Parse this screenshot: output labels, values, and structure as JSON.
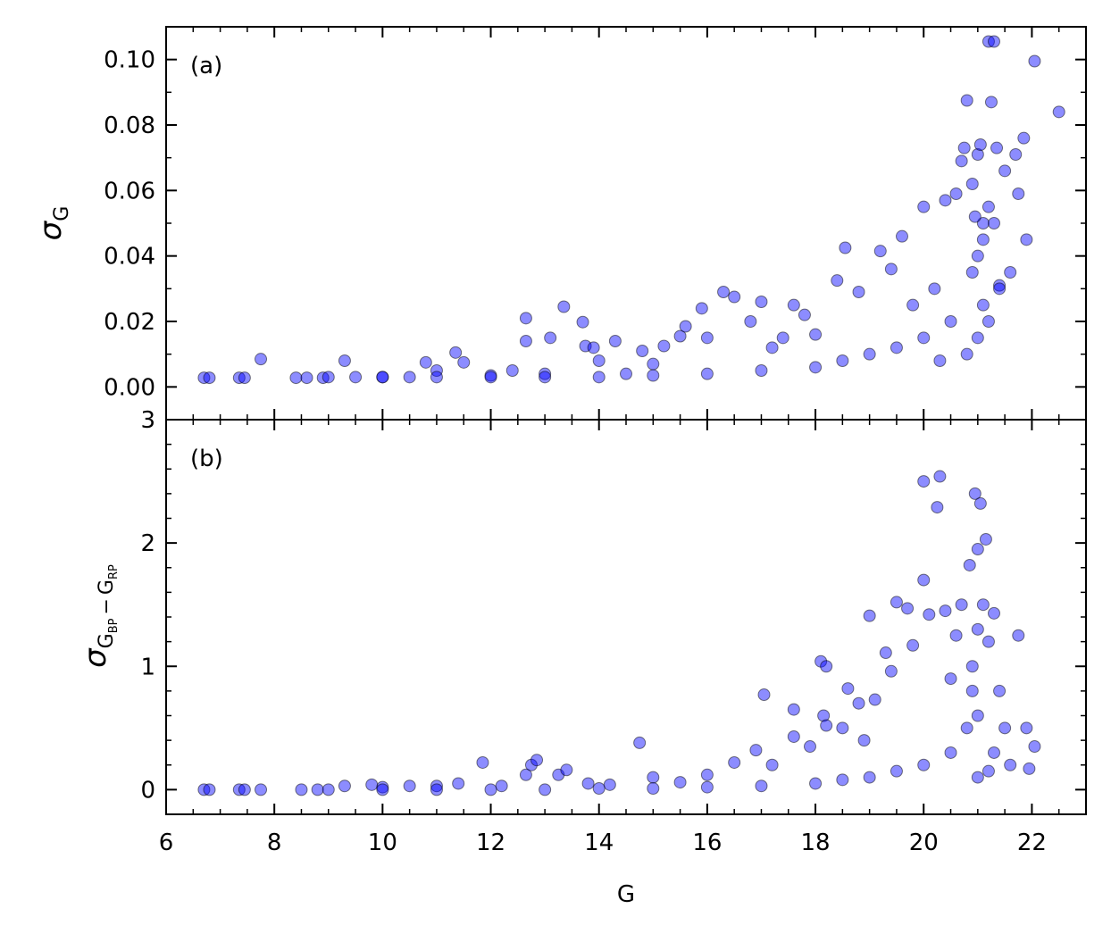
{
  "chart_data": [
    {
      "type": "scatter",
      "annotation": "(a)",
      "ylabel": [
        "σ",
        "G"
      ],
      "xlim": [
        6,
        23
      ],
      "xticks": [
        6,
        8,
        10,
        12,
        14,
        16,
        18,
        20,
        22
      ],
      "show_xticklabels": false,
      "ylim": [
        -0.01,
        0.11
      ],
      "yticks": [
        {
          "value": 0,
          "label": "0.00"
        },
        {
          "value": 0.02,
          "label": "0.02"
        },
        {
          "value": 0.04,
          "label": "0.04"
        },
        {
          "value": 0.06,
          "label": "0.06"
        },
        {
          "value": 0.08,
          "label": "0.08"
        },
        {
          "value": 0.1,
          "label": "0.10"
        }
      ],
      "series": [
        {
          "color": "#0000ff",
          "x": [
            6.7,
            6.8,
            7.35,
            7.45,
            7.75,
            8.4,
            8.6,
            8.9,
            9.3,
            9.5,
            10,
            10.5,
            10.8,
            11,
            11.35,
            11.5,
            12,
            12.4,
            12.65,
            12.65,
            13,
            13.1,
            13.35,
            13.7,
            13.75,
            13.9,
            14,
            14.3,
            14.5,
            14.8,
            15,
            15.2,
            15.5,
            15.6,
            15.9,
            16,
            16.3,
            16.5,
            16.8,
            17,
            17.2,
            17.4,
            17.6,
            17.8,
            18,
            18.4,
            18.55,
            18.8,
            19.2,
            19.4,
            19.6,
            19.8,
            20,
            20.2,
            20.4,
            20.6,
            20.7,
            20.75,
            20.8,
            20.9,
            21,
            21.05,
            21.1,
            21.2,
            21.25,
            21.3,
            21.35,
            21.5,
            21.7,
            21.75,
            21.85,
            22.05,
            22.5,
            21.9,
            21.6,
            21.4,
            21,
            20.9,
            21.1,
            20.5,
            20,
            19.5,
            19,
            18.5,
            18,
            17,
            16,
            15,
            14,
            13,
            12,
            11,
            10,
            9,
            20.8,
            21,
            21.2,
            21.4,
            20.3,
            21.1,
            20.95,
            21.2,
            21.3
          ],
          "values": [
            0.0028,
            0.0028,
            0.0028,
            0.0028,
            0.0085,
            0.0028,
            0.0028,
            0.0028,
            0.008,
            0.003,
            0.003,
            0.003,
            0.0075,
            0.005,
            0.0105,
            0.0075,
            0.0035,
            0.005,
            0.021,
            0.014,
            0.004,
            0.015,
            0.0245,
            0.0198,
            0.0125,
            0.012,
            0.008,
            0.014,
            0.004,
            0.011,
            0.007,
            0.0125,
            0.0155,
            0.0185,
            0.024,
            0.015,
            0.029,
            0.0275,
            0.02,
            0.026,
            0.012,
            0.015,
            0.025,
            0.022,
            0.016,
            0.0325,
            0.0425,
            0.029,
            0.0415,
            0.036,
            0.046,
            0.025,
            0.055,
            0.03,
            0.057,
            0.059,
            0.069,
            0.073,
            0.0875,
            0.062,
            0.071,
            0.074,
            0.05,
            0.1055,
            0.087,
            0.1055,
            0.073,
            0.066,
            0.071,
            0.059,
            0.076,
            0.0995,
            0.084,
            0.045,
            0.035,
            0.031,
            0.04,
            0.035,
            0.025,
            0.02,
            0.015,
            0.012,
            0.01,
            0.008,
            0.006,
            0.005,
            0.004,
            0.0035,
            0.003,
            0.003,
            0.003,
            0.003,
            0.003,
            0.003,
            0.01,
            0.015,
            0.02,
            0.03,
            0.008,
            0.045,
            0.052,
            0.055,
            0.05
          ]
        }
      ]
    },
    {
      "type": "scatter",
      "annotation": "(b)",
      "ylabel": [
        "σ",
        "G",
        "BP",
        "−",
        "G",
        "RP"
      ],
      "xlabel": "G",
      "xlim": [
        6,
        23
      ],
      "xticks": [
        6,
        8,
        10,
        12,
        14,
        16,
        18,
        20,
        22
      ],
      "show_xticklabels": true,
      "ylim": [
        -0.2,
        3
      ],
      "yticks": [
        0,
        1,
        2,
        3
      ],
      "series": [
        {
          "color": "#0000ff",
          "x": [
            6.7,
            6.8,
            7.35,
            7.45,
            7.75,
            8.5,
            8.8,
            9.3,
            9.8,
            10,
            10.5,
            11,
            11.4,
            11.85,
            12.2,
            12.65,
            12.75,
            12.85,
            13.25,
            13.4,
            13.8,
            14.2,
            14.75,
            15,
            15.5,
            16,
            16.5,
            16.9,
            17.05,
            17.2,
            17.6,
            17.6,
            17.9,
            18.1,
            18.2,
            18.15,
            18.2,
            18.5,
            18.6,
            18.8,
            18.9,
            19,
            19.1,
            19.3,
            19.4,
            19.5,
            19.7,
            19.8,
            20,
            20,
            20.1,
            20.25,
            20.3,
            20.4,
            20.5,
            20.6,
            20.7,
            20.85,
            20.95,
            21,
            21.05,
            21.15,
            21.1,
            21,
            20.9,
            21.2,
            21.3,
            21.4,
            21.5,
            21.75,
            21.9,
            22.05,
            21.95,
            21.6,
            21.3,
            21,
            20.8,
            20.5,
            20,
            19.5,
            19,
            18.5,
            18,
            17,
            16,
            15,
            14,
            13,
            12,
            11,
            10,
            9,
            21,
            21.2,
            20.9
          ],
          "values": [
            0,
            0,
            0,
            0,
            0,
            0,
            0,
            0.03,
            0.04,
            0.02,
            0.03,
            0.03,
            0.05,
            0.22,
            0.03,
            0.12,
            0.2,
            0.24,
            0.12,
            0.16,
            0.05,
            0.04,
            0.38,
            0.1,
            0.06,
            0.12,
            0.22,
            0.32,
            0.77,
            0.2,
            0.65,
            0.43,
            0.35,
            1.04,
            1.0,
            0.6,
            0.52,
            0.5,
            0.82,
            0.7,
            0.4,
            1.41,
            0.73,
            1.11,
            0.96,
            1.52,
            1.47,
            1.17,
            2.5,
            1.7,
            1.42,
            2.29,
            2.54,
            1.45,
            0.9,
            1.25,
            1.5,
            1.82,
            2.4,
            1.95,
            2.32,
            2.03,
            1.5,
            1.3,
            1.0,
            1.2,
            1.43,
            0.8,
            0.5,
            1.25,
            0.5,
            0.35,
            0.17,
            0.2,
            0.3,
            0.6,
            0.5,
            0.3,
            0.2,
            0.15,
            0.1,
            0.08,
            0.05,
            0.03,
            0.02,
            0.01,
            0.01,
            0,
            0,
            0,
            0,
            0,
            0.1,
            0.15,
            0.8
          ]
        }
      ]
    }
  ]
}
